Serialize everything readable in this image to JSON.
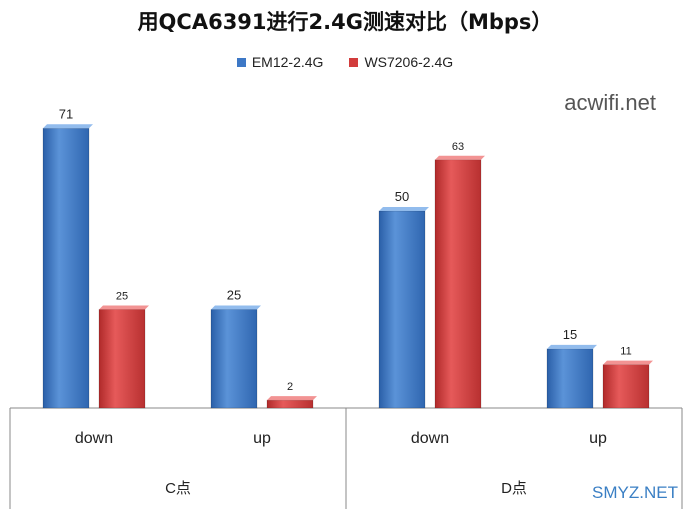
{
  "chart_data": {
    "type": "bar",
    "title": "用QCA6391进行2.4G测速对比（Mbps）",
    "groups": [
      {
        "label": "C点",
        "categories": [
          "down",
          "up"
        ]
      },
      {
        "label": "D点",
        "categories": [
          "down",
          "up"
        ]
      }
    ],
    "categories": [
      "down",
      "up",
      "down",
      "up"
    ],
    "series": [
      {
        "name": "EM12-2.4G",
        "color": "#3d78c6",
        "values": [
          71,
          25,
          50,
          15
        ]
      },
      {
        "name": "WS7206-2.4G",
        "color": "#d23c3c",
        "values": [
          25,
          2,
          63,
          11
        ]
      }
    ],
    "ylim": [
      0,
      75
    ],
    "legend_position": "top",
    "grid": false
  },
  "watermarks": [
    "acwifi.net",
    "SMYZ.NET"
  ]
}
